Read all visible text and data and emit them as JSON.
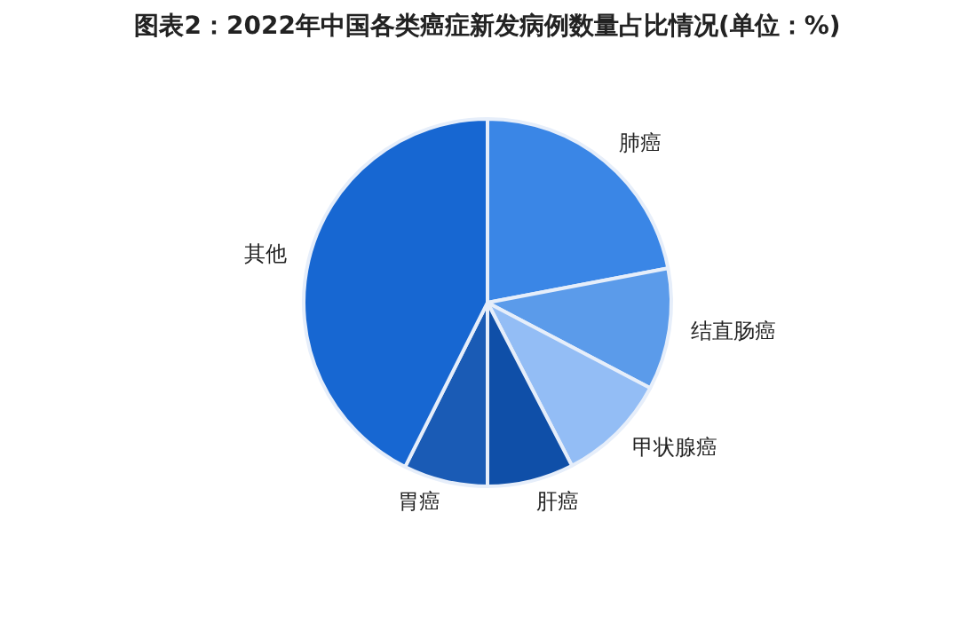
{
  "chart_data": {
    "type": "pie",
    "title": "图表2：2022年中国各类癌症新发病例数量占比情况(单位：%)",
    "categories": [
      "肺癌",
      "结直肠癌",
      "甲状腺癌",
      "肝癌",
      "胃癌",
      "其他"
    ],
    "values": [
      22.0,
      10.7,
      9.7,
      7.6,
      7.4,
      42.6
    ],
    "colors": [
      "#3a86e6",
      "#5b9bea",
      "#93bdf5",
      "#0f4fa8",
      "#1a5bb5",
      "#1767d2"
    ],
    "legend": false
  }
}
